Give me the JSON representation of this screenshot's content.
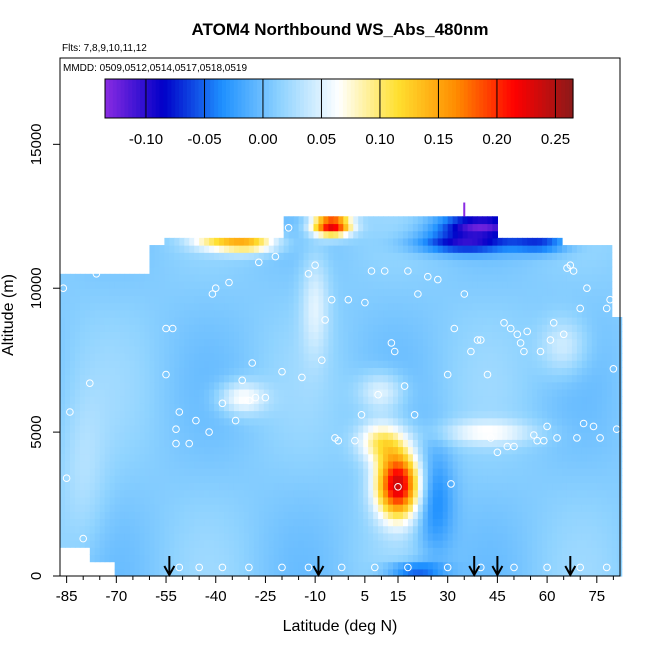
{
  "chart_data": {
    "type": "heatmap",
    "title": "ATOM4 Northbound WS_Abs_480nm",
    "subtitle_flights": "Flts: 7,8,9,10,11,12",
    "subtitle_dates": "MMDD: 0509,0512,0514,0517,0518,0519",
    "xlabel": "Latitude (deg N)",
    "ylabel": "Altitude (m)",
    "xlim": [
      -87,
      82
    ],
    "ylim": [
      0,
      18000
    ],
    "x_ticks": [
      -85,
      -70,
      -55,
      -40,
      -25,
      -10,
      5,
      15,
      30,
      45,
      60,
      75
    ],
    "y_ticks": [
      0,
      5000,
      10000,
      15000
    ],
    "colorbar": {
      "range": [
        -0.135,
        0.265
      ],
      "ticks": [
        -0.1,
        -0.05,
        0.0,
        0.05,
        0.1,
        0.15,
        0.2,
        0.25
      ],
      "tick_labels": [
        "-0.10",
        "-0.05",
        "0.00",
        "0.05",
        "0.10",
        "0.15",
        "0.20",
        "0.25"
      ],
      "colors": [
        "#8a2be2",
        "#0000c8",
        "#1e90ff",
        "#8fd3ff",
        "#ffffff",
        "#ffe030",
        "#ff8c00",
        "#ff0000",
        "#8b1a1a"
      ]
    },
    "background_value": 0.01,
    "hotspots": [
      {
        "lat": 15,
        "alt": 3200,
        "value": 0.24,
        "lat_sigma": 4.5,
        "alt_sigma": 800
      },
      {
        "lat": 10,
        "alt": 4700,
        "value": 0.1,
        "lat_sigma": 5,
        "alt_sigma": 500
      },
      {
        "lat": 26,
        "alt": 2600,
        "value": -0.04,
        "lat_sigma": 4,
        "alt_sigma": 1300
      },
      {
        "lat": -30,
        "alt": 11600,
        "value": 0.12,
        "lat_sigma": 6,
        "alt_sigma": 250
      },
      {
        "lat": -40,
        "alt": 11700,
        "value": 0.08,
        "lat_sigma": 6,
        "alt_sigma": 250
      },
      {
        "lat": -5,
        "alt": 12200,
        "value": 0.24,
        "lat_sigma": 4,
        "alt_sigma": 250
      },
      {
        "lat": 40,
        "alt": 12200,
        "value": -0.11,
        "lat_sigma": 9,
        "alt_sigma": 250
      },
      {
        "lat": 35,
        "alt": 11600,
        "value": -0.09,
        "lat_sigma": 10,
        "alt_sigma": 250
      },
      {
        "lat": 58,
        "alt": 11600,
        "value": -0.06,
        "lat_sigma": 6,
        "alt_sigma": 250
      },
      {
        "lat": -10,
        "alt": 9500,
        "value": 0.05,
        "lat_sigma": 3,
        "alt_sigma": 1300
      },
      {
        "lat": 42,
        "alt": 5000,
        "value": 0.06,
        "lat_sigma": 10,
        "alt_sigma": 300
      },
      {
        "lat": -32,
        "alt": 6200,
        "value": 0.07,
        "lat_sigma": 5,
        "alt_sigma": 400
      },
      {
        "lat": 10,
        "alt": 6400,
        "value": 0.06,
        "lat_sigma": 5,
        "alt_sigma": 500
      },
      {
        "lat": 20,
        "alt": 200,
        "value": -0.06,
        "lat_sigma": 6,
        "alt_sigma": 200
      },
      {
        "lat": 65,
        "alt": 8000,
        "value": 0.05,
        "lat_sigma": 5,
        "alt_sigma": 700
      },
      {
        "lat": -80,
        "alt": 3500,
        "value": 0.03,
        "lat_sigma": 5,
        "alt_sigma": 2000
      }
    ],
    "coverage": [
      {
        "lat_min": -87,
        "lat_max": -78,
        "alt_min": 1100,
        "alt_max": 10500
      },
      {
        "lat_min": -78,
        "lat_max": -70,
        "alt_min": 500,
        "alt_max": 10500
      },
      {
        "lat_min": -70,
        "lat_max": -60,
        "alt_min": 0,
        "alt_max": 10500
      },
      {
        "lat_min": -60,
        "lat_max": -56,
        "alt_min": 0,
        "alt_max": 11500
      },
      {
        "lat_min": -56,
        "lat_max": -20,
        "alt_min": 0,
        "alt_max": 11800
      },
      {
        "lat_min": -20,
        "lat_max": 45,
        "alt_min": 0,
        "alt_max": 12500
      },
      {
        "lat_min": 45,
        "lat_max": 65,
        "alt_min": 0,
        "alt_max": 11800
      },
      {
        "lat_min": 65,
        "lat_max": 80,
        "alt_min": 0,
        "alt_max": 11500
      },
      {
        "lat_min": 80,
        "lat_max": 82,
        "alt_min": 0,
        "alt_max": 9000
      }
    ],
    "flight_points": [
      [
        -86,
        10000
      ],
      [
        -85,
        3400
      ],
      [
        -84,
        5700
      ],
      [
        -80,
        1300
      ],
      [
        -78,
        6700
      ],
      [
        -76,
        10500
      ],
      [
        -74,
        10700
      ],
      [
        -70,
        11300
      ],
      [
        -67,
        11300
      ],
      [
        -55,
        7000
      ],
      [
        -55,
        8600
      ],
      [
        -52,
        5100
      ],
      [
        -52,
        4600
      ],
      [
        -53,
        8600
      ],
      [
        -51,
        5700
      ],
      [
        -48,
        4600
      ],
      [
        -46,
        5400
      ],
      [
        -42,
        5000
      ],
      [
        -41,
        9800
      ],
      [
        -40,
        10000
      ],
      [
        -38,
        6000
      ],
      [
        -36,
        10200
      ],
      [
        -34,
        5400
      ],
      [
        -32,
        6800
      ],
      [
        -30,
        6100
      ],
      [
        -29,
        7400
      ],
      [
        -28,
        6200
      ],
      [
        -27,
        10900
      ],
      [
        -25,
        6200
      ],
      [
        -22,
        11100
      ],
      [
        -20,
        7100
      ],
      [
        -18,
        12100
      ],
      [
        -14,
        6900
      ],
      [
        -12,
        10500
      ],
      [
        -10,
        10800
      ],
      [
        -8,
        7500
      ],
      [
        -7,
        8900
      ],
      [
        -5,
        9600
      ],
      [
        -4,
        4800
      ],
      [
        -3,
        4700
      ],
      [
        0,
        9600
      ],
      [
        2,
        4700
      ],
      [
        4,
        5600
      ],
      [
        5,
        9500
      ],
      [
        7,
        10600
      ],
      [
        9,
        6300
      ],
      [
        11,
        10600
      ],
      [
        13,
        8100
      ],
      [
        14,
        7800
      ],
      [
        15,
        3100
      ],
      [
        17,
        6600
      ],
      [
        18,
        10600
      ],
      [
        20,
        5600
      ],
      [
        21,
        9800
      ],
      [
        24,
        10400
      ],
      [
        27,
        10300
      ],
      [
        30,
        7000
      ],
      [
        31,
        3200
      ],
      [
        32,
        8600
      ],
      [
        35,
        9800
      ],
      [
        37,
        7800
      ],
      [
        39,
        8200
      ],
      [
        40,
        8200
      ],
      [
        42,
        7000
      ],
      [
        43,
        4800
      ],
      [
        45,
        4300
      ],
      [
        47,
        8800
      ],
      [
        48,
        4500
      ],
      [
        49,
        8600
      ],
      [
        50,
        4500
      ],
      [
        51,
        8400
      ],
      [
        52,
        8100
      ],
      [
        53,
        7800
      ],
      [
        54,
        8500
      ],
      [
        56,
        4900
      ],
      [
        57,
        4700
      ],
      [
        58,
        7800
      ],
      [
        59,
        4700
      ],
      [
        60,
        5200
      ],
      [
        61,
        8200
      ],
      [
        62,
        8800
      ],
      [
        63,
        4800
      ],
      [
        65,
        8400
      ],
      [
        66,
        10700
      ],
      [
        67,
        10800
      ],
      [
        68,
        10600
      ],
      [
        69,
        4800
      ],
      [
        70,
        9300
      ],
      [
        71,
        5300
      ],
      [
        72,
        10000
      ],
      [
        74,
        5200
      ],
      [
        76,
        4800
      ],
      [
        78,
        9300
      ],
      [
        79,
        9600
      ],
      [
        80,
        7200
      ],
      [
        81,
        5100
      ],
      [
        -51,
        300
      ],
      [
        -45,
        300
      ],
      [
        -38,
        300
      ],
      [
        -30,
        300
      ],
      [
        -20,
        300
      ],
      [
        -12,
        300
      ],
      [
        -2,
        300
      ],
      [
        8,
        300
      ],
      [
        18,
        300
      ],
      [
        30,
        300
      ],
      [
        40,
        300
      ],
      [
        50,
        300
      ],
      [
        60,
        300
      ],
      [
        70,
        300
      ],
      [
        78,
        300
      ]
    ],
    "arrows_lat": [
      -54,
      -9,
      38,
      45,
      67
    ],
    "marker_lat": 35,
    "marker_alt": 12700
  }
}
